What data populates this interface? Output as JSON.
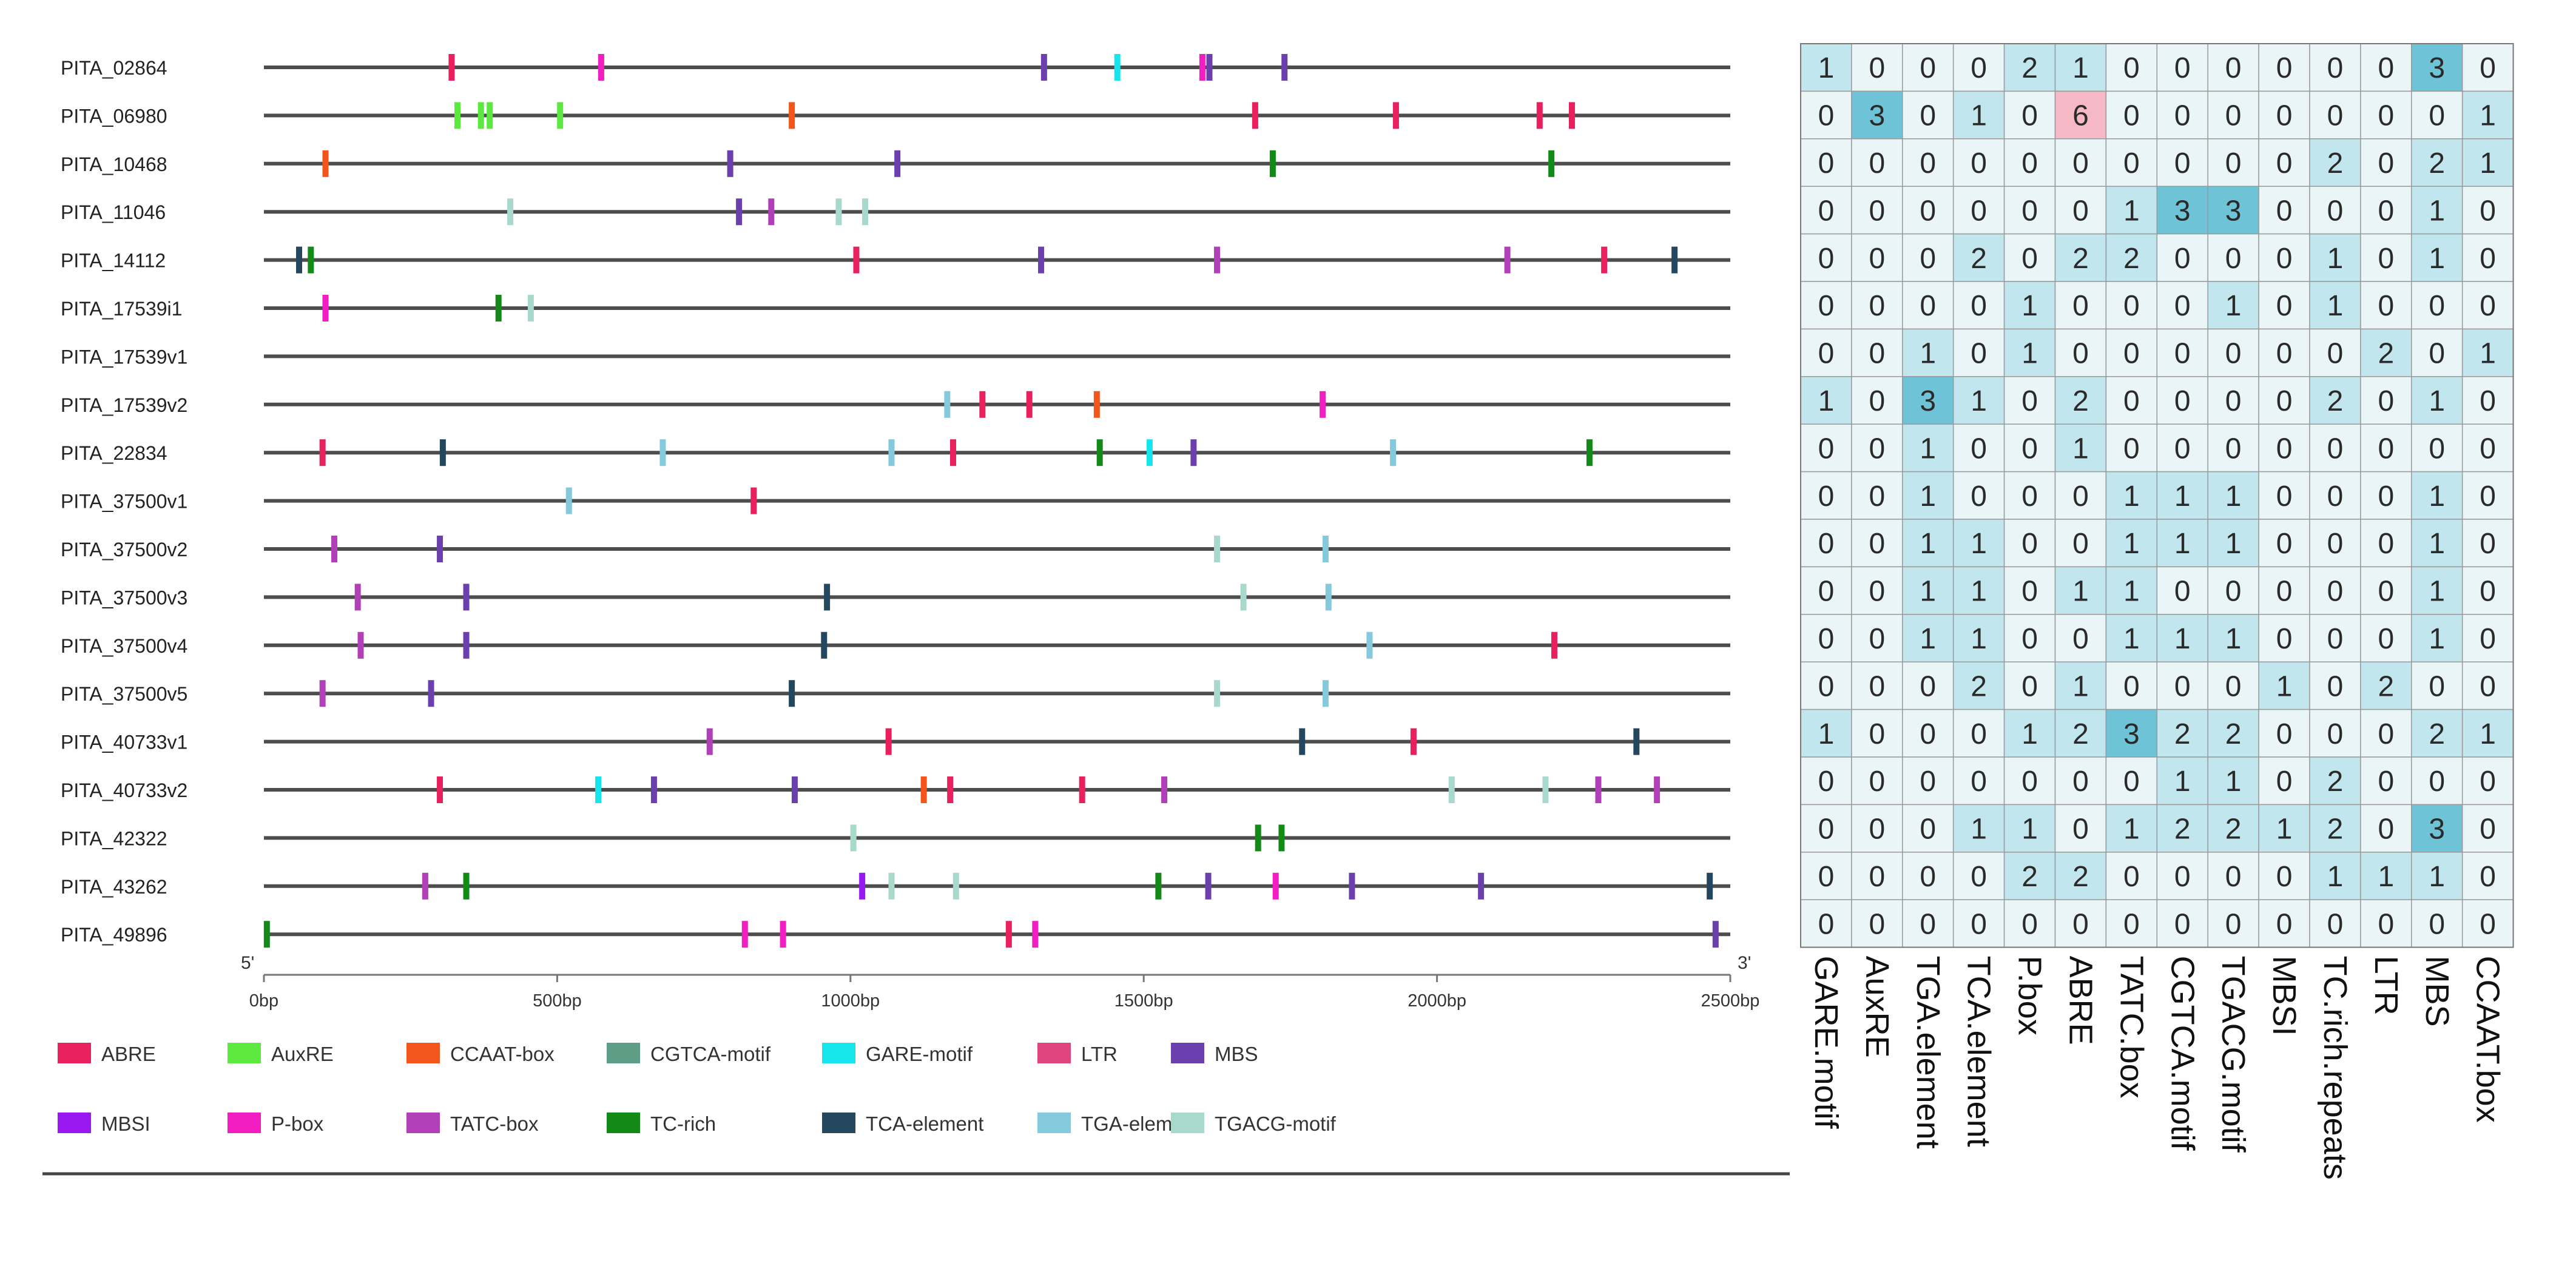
{
  "chart_data": [
    {
      "type": "scatter",
      "description_type": "promoter element map",
      "genes": [
        "PITA_02864",
        "PITA_06980",
        "PITA_10468",
        "PITA_11046",
        "PITA_14112",
        "PITA_17539i1",
        "PITA_17539v1",
        "PITA_17539v2",
        "PITA_22834",
        "PITA_37500v1",
        "PITA_37500v2",
        "PITA_37500v3",
        "PITA_37500v4",
        "PITA_37500v5",
        "PITA_40733v1",
        "PITA_40733v2",
        "PITA_42322",
        "PITA_43262",
        "PITA_49896"
      ],
      "xlim": [
        0,
        2500
      ],
      "x_ticks": [
        "0bp",
        "500bp",
        "1000bp",
        "1500bp",
        "2000bp",
        "2500bp"
      ],
      "x_tick_values": [
        0,
        500,
        1000,
        1500,
        2000,
        2500
      ],
      "end_labels": {
        "left": "5'",
        "right": "3'"
      },
      "legend": [
        {
          "name": "ABRE",
          "color": "#e8205e"
        },
        {
          "name": "AuxRE",
          "color": "#5de840"
        },
        {
          "name": "CCAAT-box",
          "color": "#f2561d"
        },
        {
          "name": "CGTCA-motif",
          "color": "#5f9e86"
        },
        {
          "name": "GARE-motif",
          "color": "#16e6ec"
        },
        {
          "name": "LTR",
          "color": "#e0457f"
        },
        {
          "name": "MBS",
          "color": "#6b3fae"
        },
        {
          "name": "MBSI",
          "color": "#9a18f0"
        },
        {
          "name": "P-box",
          "color": "#f21ec2"
        },
        {
          "name": "TATC-box",
          "color": "#b140b8"
        },
        {
          "name": "TC-rich",
          "color": "#138a18"
        },
        {
          "name": "TCA-element",
          "color": "#22475e"
        },
        {
          "name": "TGA-element",
          "color": "#84c9dc"
        },
        {
          "name": "TGACG-motif",
          "color": "#a9d9cc"
        }
      ],
      "elements": [
        [
          [
            320,
            "ABRE"
          ],
          [
            575,
            "P-box"
          ],
          [
            1330,
            "MBS"
          ],
          [
            1455,
            "GARE-motif"
          ],
          [
            1600,
            "P-box"
          ],
          [
            1612,
            "MBS"
          ],
          [
            1740,
            "MBS"
          ]
        ],
        [
          [
            330,
            "AuxRE"
          ],
          [
            370,
            "AuxRE"
          ],
          [
            385,
            "AuxRE"
          ],
          [
            505,
            "AuxRE"
          ],
          [
            900,
            "CCAAT-box"
          ],
          [
            1690,
            "ABRE"
          ],
          [
            1930,
            "ABRE"
          ],
          [
            2175,
            "ABRE"
          ],
          [
            2230,
            "ABRE"
          ]
        ],
        [
          [
            105,
            "CCAAT-box"
          ],
          [
            795,
            "MBS"
          ],
          [
            1080,
            "MBS"
          ],
          [
            1720,
            "TC-rich"
          ],
          [
            2195,
            "TC-rich"
          ]
        ],
        [
          [
            420,
            "TGACG-motif"
          ],
          [
            810,
            "MBS"
          ],
          [
            865,
            "TATC-box"
          ],
          [
            980,
            "TGACG-motif"
          ],
          [
            1025,
            "TGACG-motif"
          ]
        ],
        [
          [
            60,
            "TCA-element"
          ],
          [
            80,
            "TC-rich"
          ],
          [
            1010,
            "ABRE"
          ],
          [
            1325,
            "MBS"
          ],
          [
            1625,
            "TATC-box"
          ],
          [
            2120,
            "TATC-box"
          ],
          [
            2285,
            "ABRE"
          ],
          [
            2405,
            "TCA-element"
          ]
        ],
        [
          [
            105,
            "P-box"
          ],
          [
            400,
            "TC-rich"
          ],
          [
            455,
            "TGACG-motif"
          ]
        ],
        [],
        [
          [
            1165,
            "TGA-element"
          ],
          [
            1225,
            "ABRE"
          ],
          [
            1305,
            "ABRE"
          ],
          [
            1420,
            "CCAAT-box"
          ],
          [
            1805,
            "P-box"
          ]
        ],
        [
          [
            100,
            "ABRE"
          ],
          [
            305,
            "TCA-element"
          ],
          [
            680,
            "TGA-element"
          ],
          [
            1070,
            "TGA-element"
          ],
          [
            1175,
            "ABRE"
          ],
          [
            1425,
            "TC-rich"
          ],
          [
            1510,
            "GARE-motif"
          ],
          [
            1585,
            "MBS"
          ],
          [
            1925,
            "TGA-element"
          ],
          [
            2260,
            "TC-rich"
          ]
        ],
        [
          [
            520,
            "TGA-element"
          ],
          [
            835,
            "ABRE"
          ]
        ],
        [
          [
            120,
            "TATC-box"
          ],
          [
            300,
            "MBS"
          ],
          [
            1625,
            "TGACG-motif"
          ],
          [
            1810,
            "TGA-element"
          ]
        ],
        [
          [
            160,
            "TATC-box"
          ],
          [
            345,
            "MBS"
          ],
          [
            960,
            "TCA-element"
          ],
          [
            1670,
            "TGACG-motif"
          ],
          [
            1815,
            "TGA-element"
          ]
        ],
        [
          [
            165,
            "TATC-box"
          ],
          [
            345,
            "MBS"
          ],
          [
            955,
            "TCA-element"
          ],
          [
            1885,
            "TGA-element"
          ],
          [
            2200,
            "ABRE"
          ]
        ],
        [
          [
            100,
            "TATC-box"
          ],
          [
            285,
            "MBS"
          ],
          [
            900,
            "TCA-element"
          ],
          [
            1625,
            "TGACG-motif"
          ],
          [
            1810,
            "TGA-element"
          ]
        ],
        [
          [
            760,
            "TATC-box"
          ],
          [
            1065,
            "ABRE"
          ],
          [
            1770,
            "TCA-element"
          ],
          [
            1960,
            "ABRE"
          ],
          [
            2340,
            "TCA-element"
          ]
        ],
        [
          [
            300,
            "ABRE"
          ],
          [
            570,
            "GARE-motif"
          ],
          [
            665,
            "MBS"
          ],
          [
            905,
            "MBS"
          ],
          [
            1125,
            "CCAAT-box"
          ],
          [
            1170,
            "ABRE"
          ],
          [
            1395,
            "ABRE"
          ],
          [
            1535,
            "TATC-box"
          ],
          [
            2025,
            "TGACG-motif"
          ],
          [
            2185,
            "TGACG-motif"
          ],
          [
            2275,
            "TATC-box"
          ],
          [
            2375,
            "TATC-box"
          ]
        ],
        [
          [
            1005,
            "TGACG-motif"
          ],
          [
            1695,
            "TC-rich"
          ],
          [
            1735,
            "TC-rich"
          ]
        ],
        [
          [
            275,
            "TATC-box"
          ],
          [
            345,
            "TC-rich"
          ],
          [
            1020,
            "MBSI"
          ],
          [
            1070,
            "TGACG-motif"
          ],
          [
            1180,
            "TGACG-motif"
          ],
          [
            1525,
            "TC-rich"
          ],
          [
            1610,
            "MBS"
          ],
          [
            1725,
            "P-box"
          ],
          [
            1855,
            "MBS"
          ],
          [
            2075,
            "MBS"
          ],
          [
            2465,
            "TCA-element"
          ]
        ],
        [
          [
            5,
            "TC-rich"
          ],
          [
            820,
            "P-box"
          ],
          [
            885,
            "P-box"
          ],
          [
            1270,
            "ABRE"
          ],
          [
            1315,
            "P-box"
          ],
          [
            2475,
            "MBS"
          ]
        ]
      ]
    },
    {
      "type": "heatmap",
      "columns": [
        "GARE.motif",
        "AuxRE",
        "TGA.element",
        "TCA.element",
        "P.box",
        "ABRE",
        "TATC.box",
        "CGTCA.motif",
        "TGACG.motif",
        "MBSI",
        "TC.rich.repeats",
        "LTR",
        "MBS",
        "CCAAT.box"
      ],
      "values": [
        [
          1,
          0,
          0,
          0,
          2,
          1,
          0,
          0,
          0,
          0,
          0,
          0,
          3,
          0
        ],
        [
          0,
          3,
          0,
          1,
          0,
          6,
          0,
          0,
          0,
          0,
          0,
          0,
          0,
          1
        ],
        [
          0,
          0,
          0,
          0,
          0,
          0,
          0,
          0,
          0,
          0,
          2,
          0,
          2,
          1
        ],
        [
          0,
          0,
          0,
          0,
          0,
          0,
          1,
          3,
          3,
          0,
          0,
          0,
          1,
          0
        ],
        [
          0,
          0,
          0,
          2,
          0,
          2,
          2,
          0,
          0,
          0,
          1,
          0,
          1,
          0
        ],
        [
          0,
          0,
          0,
          0,
          1,
          0,
          0,
          0,
          1,
          0,
          1,
          0,
          0,
          0
        ],
        [
          0,
          0,
          1,
          0,
          1,
          0,
          0,
          0,
          0,
          0,
          0,
          2,
          0,
          1
        ],
        [
          1,
          0,
          3,
          1,
          0,
          2,
          0,
          0,
          0,
          0,
          2,
          0,
          1,
          0
        ],
        [
          0,
          0,
          1,
          0,
          0,
          1,
          0,
          0,
          0,
          0,
          0,
          0,
          0,
          0
        ],
        [
          0,
          0,
          1,
          0,
          0,
          0,
          1,
          1,
          1,
          0,
          0,
          0,
          1,
          0
        ],
        [
          0,
          0,
          1,
          1,
          0,
          0,
          1,
          1,
          1,
          0,
          0,
          0,
          1,
          0
        ],
        [
          0,
          0,
          1,
          1,
          0,
          1,
          1,
          0,
          0,
          0,
          0,
          0,
          1,
          0
        ],
        [
          0,
          0,
          1,
          1,
          0,
          0,
          1,
          1,
          1,
          0,
          0,
          0,
          1,
          0
        ],
        [
          0,
          0,
          0,
          2,
          0,
          1,
          0,
          0,
          0,
          1,
          0,
          2,
          0,
          0
        ],
        [
          1,
          0,
          0,
          0,
          1,
          2,
          3,
          2,
          2,
          0,
          0,
          0,
          2,
          1
        ],
        [
          0,
          0,
          0,
          0,
          0,
          0,
          0,
          1,
          1,
          0,
          2,
          0,
          0,
          0
        ],
        [
          0,
          0,
          0,
          1,
          1,
          0,
          1,
          2,
          2,
          1,
          2,
          0,
          3,
          0
        ],
        [
          0,
          0,
          0,
          0,
          2,
          2,
          0,
          0,
          0,
          0,
          1,
          1,
          1,
          0
        ],
        [
          0,
          0,
          0,
          0,
          0,
          0,
          0,
          0,
          0,
          0,
          0,
          0,
          0,
          0
        ]
      ],
      "color_scale": {
        "low": "#eaf5f8",
        "mid": "#c2e6ee",
        "high": "#6ec3d6",
        "max": "#f6b8c4"
      }
    }
  ]
}
